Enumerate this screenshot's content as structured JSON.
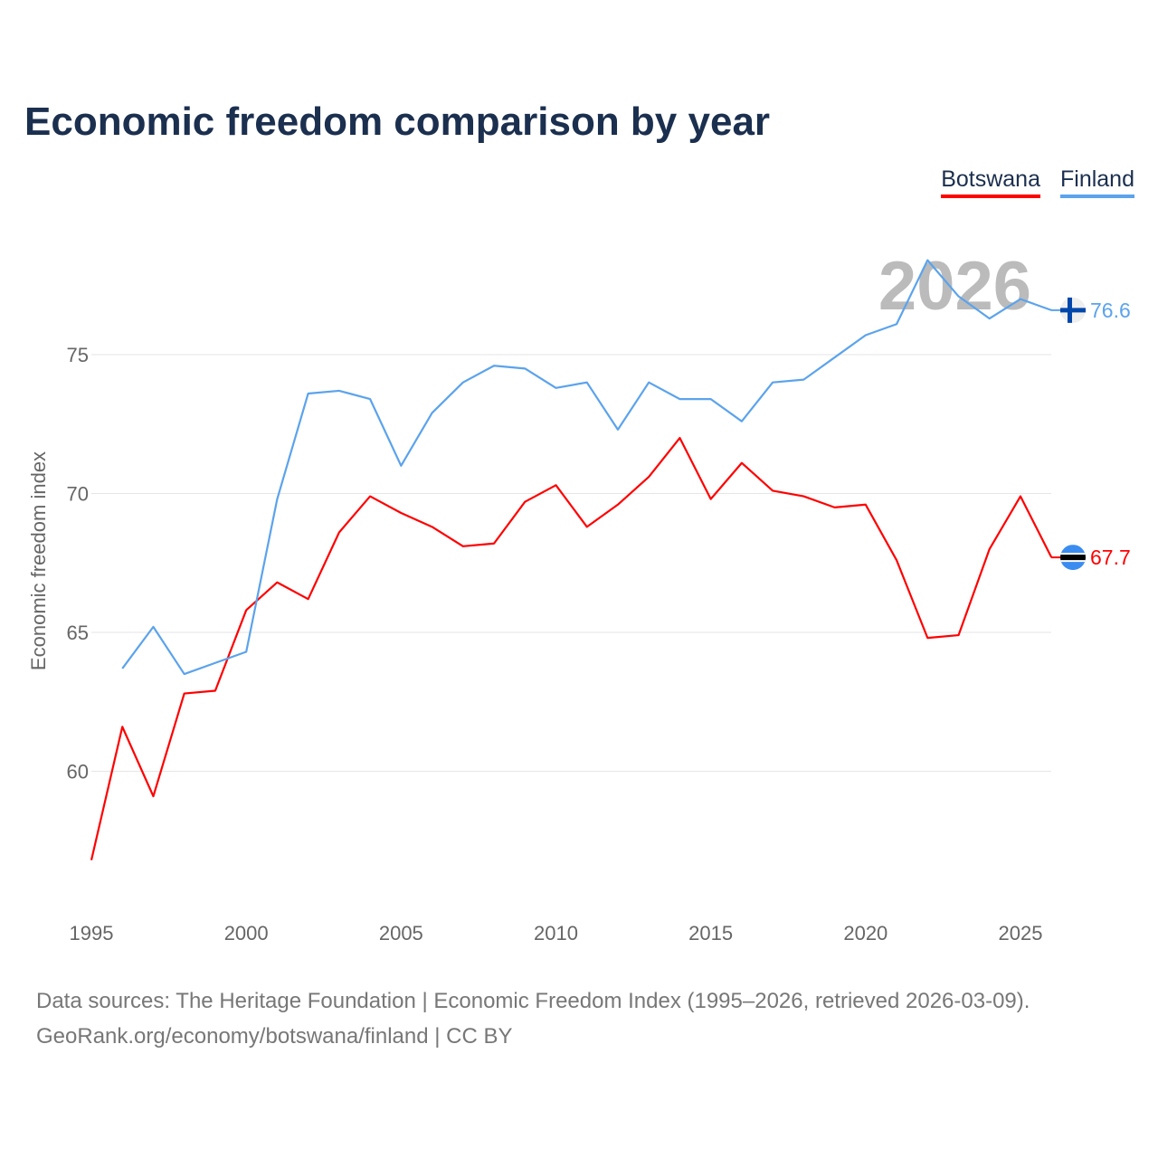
{
  "chart_data": {
    "type": "line",
    "title": "Economic freedom comparison by year",
    "xlabel": "",
    "ylabel": "Economic freedom index",
    "xlim": [
      1995,
      2026
    ],
    "ylim": [
      56,
      78.5
    ],
    "yticks": [
      60,
      65,
      70,
      75
    ],
    "xticks": [
      1995,
      2000,
      2005,
      2010,
      2015,
      2020,
      2025
    ],
    "watermark_year": "2026",
    "legend_position": "top-right",
    "series": [
      {
        "name": "Botswana",
        "color": "#ff0000",
        "end_label": "67.7",
        "x": [
          1995,
          1996,
          1997,
          1998,
          1999,
          2000,
          2001,
          2002,
          2003,
          2004,
          2005,
          2006,
          2007,
          2008,
          2009,
          2010,
          2011,
          2012,
          2013,
          2014,
          2015,
          2016,
          2017,
          2018,
          2019,
          2020,
          2021,
          2022,
          2023,
          2024,
          2025,
          2026
        ],
        "values": [
          56.8,
          61.6,
          59.1,
          62.8,
          62.9,
          65.8,
          66.8,
          66.2,
          68.6,
          69.9,
          69.3,
          68.8,
          68.1,
          68.2,
          69.7,
          70.3,
          68.8,
          69.6,
          70.6,
          72.0,
          69.8,
          71.1,
          70.1,
          69.9,
          69.5,
          69.6,
          67.6,
          64.8,
          64.9,
          68.0,
          69.9,
          67.7
        ]
      },
      {
        "name": "Finland",
        "color": "#5ba3ec",
        "end_label": "76.6",
        "x": [
          1996,
          1997,
          1998,
          1999,
          2000,
          2001,
          2002,
          2003,
          2004,
          2005,
          2006,
          2007,
          2008,
          2009,
          2010,
          2011,
          2012,
          2013,
          2014,
          2015,
          2016,
          2017,
          2018,
          2019,
          2020,
          2021,
          2022,
          2023,
          2024,
          2025,
          2026
        ],
        "values": [
          63.7,
          65.2,
          63.5,
          63.9,
          64.3,
          69.8,
          73.6,
          73.7,
          73.4,
          71.0,
          72.9,
          74.0,
          74.6,
          74.5,
          73.8,
          74.0,
          72.3,
          74.0,
          73.4,
          73.4,
          72.6,
          74.0,
          74.1,
          74.9,
          75.7,
          76.1,
          78.4,
          77.1,
          76.3,
          77.0,
          76.6
        ]
      }
    ]
  },
  "footer": {
    "line1": "Data sources: The Heritage Foundation | Economic Freedom Index (1995–2026, retrieved 2026-03-09).",
    "line2": "GeoRank.org/economy/botswana/finland | CC BY"
  }
}
